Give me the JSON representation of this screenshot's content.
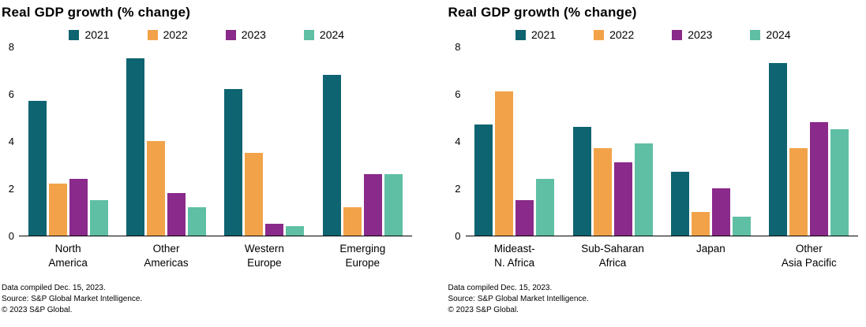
{
  "chart_data": [
    {
      "type": "bar",
      "title": "Real GDP growth (% change)",
      "categories": [
        "North\nAmerica",
        "Other\nAmericas",
        "Western\nEurope",
        "Emerging\nEurope"
      ],
      "series": [
        {
          "name": "2021",
          "color": "#0e6471",
          "values": [
            5.7,
            7.5,
            6.2,
            6.8
          ]
        },
        {
          "name": "2022",
          "color": "#f2a349",
          "values": [
            2.2,
            4.0,
            3.5,
            1.2
          ]
        },
        {
          "name": "2023",
          "color": "#8a2a8a",
          "values": [
            2.4,
            1.8,
            0.5,
            2.6
          ]
        },
        {
          "name": "2024",
          "color": "#5fbfa4",
          "values": [
            1.5,
            1.2,
            0.4,
            2.6
          ]
        }
      ],
      "xlabel": "",
      "ylabel": "",
      "ylim": [
        0,
        8
      ],
      "yticks": [
        0,
        2,
        4,
        6,
        8
      ],
      "grid": false,
      "legend_position": "top",
      "footnotes": [
        "Data compiled Dec. 15, 2023.",
        "Source: S&P Global Market Intelligence.",
        "© 2023 S&P Global."
      ]
    },
    {
      "type": "bar",
      "title": "Real GDP growth (% change)",
      "categories": [
        "Mideast-\nN. Africa",
        "Sub-Saharan\nAfrica",
        "Japan",
        "Other\nAsia Pacific"
      ],
      "series": [
        {
          "name": "2021",
          "color": "#0e6471",
          "values": [
            4.7,
            4.6,
            2.7,
            7.3
          ]
        },
        {
          "name": "2022",
          "color": "#f2a349",
          "values": [
            6.1,
            3.7,
            1.0,
            3.7
          ]
        },
        {
          "name": "2023",
          "color": "#8a2a8a",
          "values": [
            1.5,
            3.1,
            2.0,
            4.8
          ]
        },
        {
          "name": "2024",
          "color": "#5fbfa4",
          "values": [
            2.4,
            3.9,
            0.8,
            4.5
          ]
        }
      ],
      "xlabel": "",
      "ylabel": "",
      "ylim": [
        0,
        8
      ],
      "yticks": [
        0,
        2,
        4,
        6,
        8
      ],
      "grid": false,
      "legend_position": "top",
      "footnotes": [
        "Data compiled Dec. 15, 2023.",
        "Source: S&P Global Market Intelligence.",
        "© 2023 S&P Global."
      ]
    }
  ]
}
